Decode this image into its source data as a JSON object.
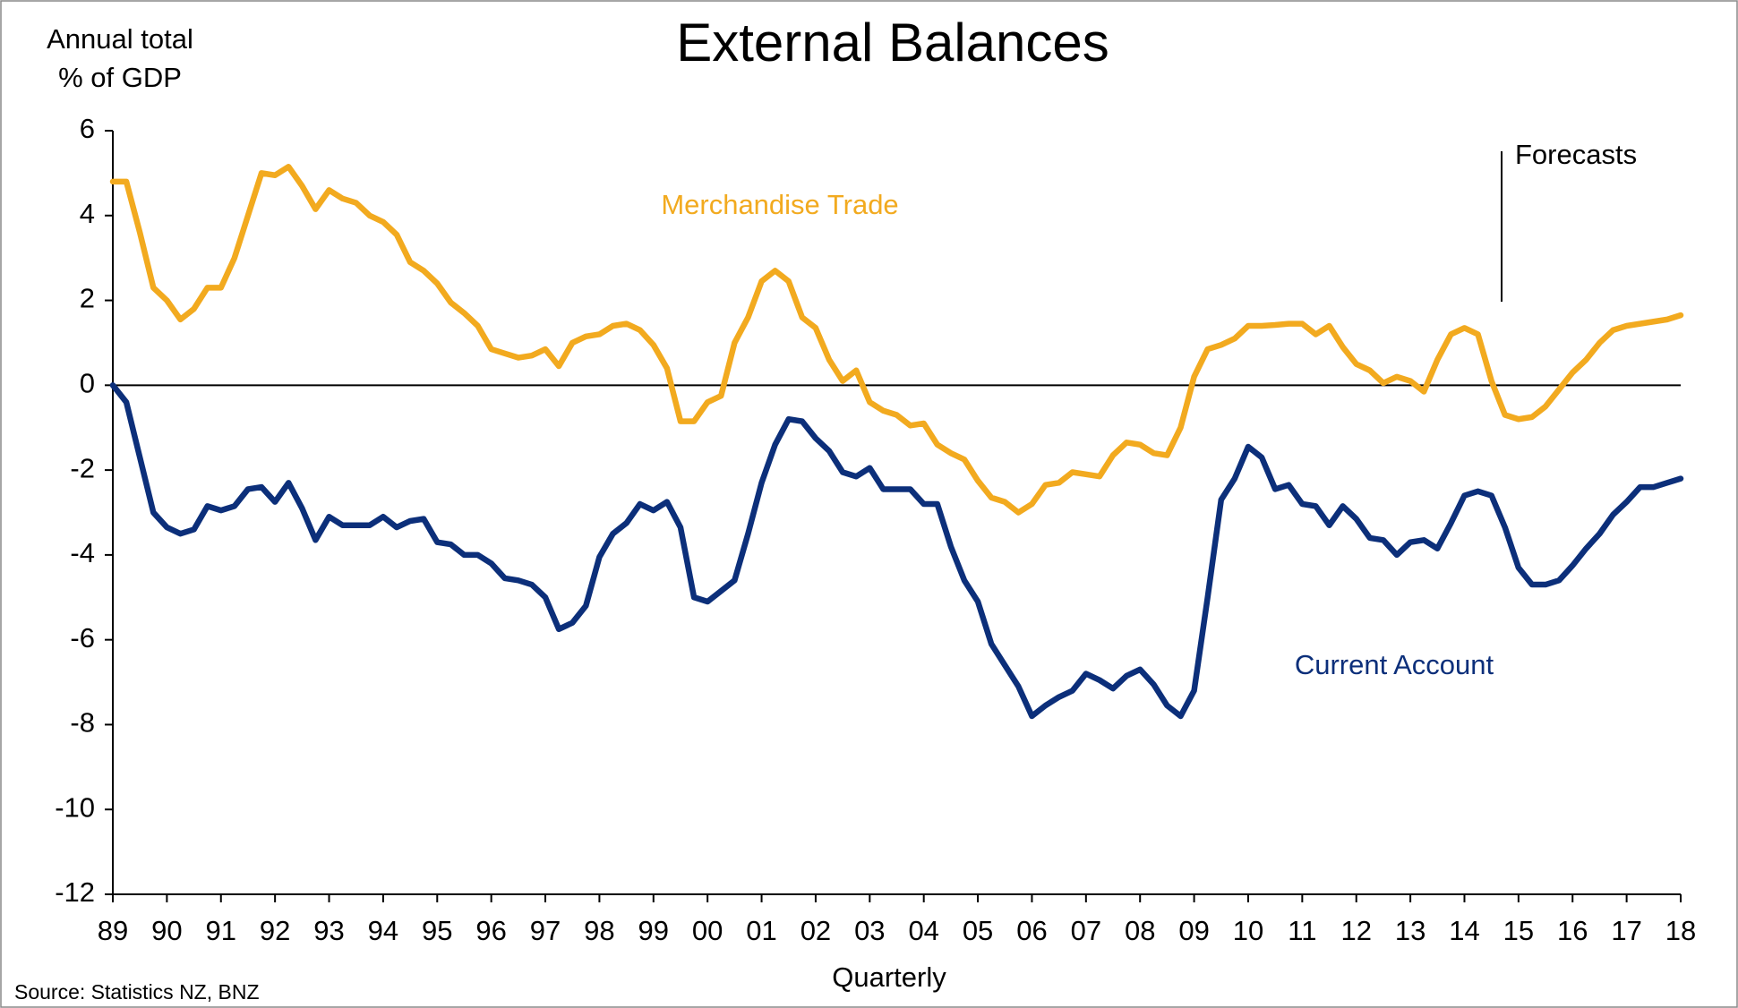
{
  "chart_data": {
    "type": "line",
    "title": "External Balances",
    "ylabel": [
      "Annual total",
      "% of GDP"
    ],
    "xlabel": "Quarterly",
    "source": "Source: Statistics NZ, BNZ",
    "annotations": [
      {
        "text": "Forecasts"
      }
    ],
    "x": [
      0,
      1,
      2,
      3,
      4,
      5,
      6,
      7,
      8,
      9,
      10,
      11,
      12,
      13,
      14,
      15,
      16,
      17,
      18,
      19,
      20,
      21,
      22,
      23,
      24,
      25,
      26,
      27,
      28,
      29,
      30,
      31,
      32,
      33,
      34,
      35,
      36,
      37,
      38,
      39,
      40,
      41,
      42,
      43,
      44,
      45,
      46,
      47,
      48,
      49,
      50,
      51,
      52,
      53,
      54,
      55,
      56,
      57,
      58,
      59,
      60,
      61,
      62,
      63,
      64,
      65,
      66,
      67,
      68,
      69,
      70,
      71,
      72,
      73,
      74,
      75,
      76,
      77,
      78,
      79,
      80,
      81,
      82,
      83,
      84,
      85,
      86,
      87,
      88,
      89,
      90,
      91,
      92,
      93,
      94,
      95,
      96,
      97,
      98,
      99,
      100,
      101,
      102,
      103,
      104,
      105,
      106,
      107,
      108,
      109,
      110,
      111,
      112,
      113,
      114,
      115,
      116
    ],
    "xlim": [
      0,
      116
    ],
    "xticks": [
      {
        "value": 0,
        "label": "89"
      },
      {
        "value": 4,
        "label": "90"
      },
      {
        "value": 8,
        "label": "91"
      },
      {
        "value": 12,
        "label": "92"
      },
      {
        "value": 16,
        "label": "93"
      },
      {
        "value": 20,
        "label": "94"
      },
      {
        "value": 24,
        "label": "95"
      },
      {
        "value": 28,
        "label": "96"
      },
      {
        "value": 32,
        "label": "97"
      },
      {
        "value": 36,
        "label": "98"
      },
      {
        "value": 40,
        "label": "99"
      },
      {
        "value": 44,
        "label": "00"
      },
      {
        "value": 48,
        "label": "01"
      },
      {
        "value": 52,
        "label": "02"
      },
      {
        "value": 56,
        "label": "03"
      },
      {
        "value": 60,
        "label": "04"
      },
      {
        "value": 64,
        "label": "05"
      },
      {
        "value": 68,
        "label": "06"
      },
      {
        "value": 72,
        "label": "07"
      },
      {
        "value": 76,
        "label": "08"
      },
      {
        "value": 80,
        "label": "09"
      },
      {
        "value": 84,
        "label": "10"
      },
      {
        "value": 88,
        "label": "11"
      },
      {
        "value": 92,
        "label": "12"
      },
      {
        "value": 96,
        "label": "13"
      },
      {
        "value": 100,
        "label": "14"
      },
      {
        "value": 104,
        "label": "15"
      },
      {
        "value": 108,
        "label": "16"
      },
      {
        "value": 112,
        "label": "17"
      },
      {
        "value": 116,
        "label": "18"
      }
    ],
    "ylim": [
      -12,
      6
    ],
    "yticks": [
      6,
      4,
      2,
      0,
      -2,
      -4,
      -6,
      -8,
      -10,
      -12
    ],
    "series": [
      {
        "name": "Merchandise Trade",
        "color": "#F2AA1F",
        "values": [
          4.8,
          4.8,
          3.6,
          2.3,
          2.0,
          1.55,
          1.8,
          2.3,
          2.3,
          3.0,
          4.0,
          5.0,
          4.95,
          5.15,
          4.7,
          4.15,
          4.6,
          4.4,
          4.3,
          4.0,
          3.85,
          3.55,
          2.9,
          2.7,
          2.4,
          1.95,
          1.7,
          1.4,
          0.85,
          0.75,
          0.65,
          0.7,
          0.85,
          0.45,
          1.0,
          1.15,
          1.2,
          1.4,
          1.45,
          1.3,
          0.95,
          0.4,
          -0.85,
          -0.85,
          -0.4,
          -0.25,
          1.0,
          1.6,
          2.45,
          2.7,
          2.45,
          1.6,
          1.35,
          0.6,
          0.1,
          0.35,
          -0.4,
          -0.6,
          -0.7,
          -0.95,
          -0.9,
          -1.4,
          -1.6,
          -1.75,
          -2.25,
          -2.65,
          -2.75,
          -3.0,
          -2.8,
          -2.35,
          -2.3,
          -2.05,
          -2.1,
          -2.15,
          -1.65,
          -1.35,
          -1.4,
          -1.6,
          -1.65,
          -1.0,
          0.2,
          0.85,
          0.95,
          1.1,
          1.4,
          1.4,
          1.42,
          1.45,
          1.45,
          1.2,
          1.4,
          0.9,
          0.5,
          0.35,
          0.05,
          0.2,
          0.1,
          -0.15,
          0.6,
          1.2,
          1.35,
          1.2,
          0.1,
          -0.7,
          -0.8,
          -0.75,
          -0.5,
          -0.1,
          0.3,
          0.6,
          1.0,
          1.3,
          1.4,
          1.45,
          1.5,
          1.55,
          1.65
        ]
      },
      {
        "name": "Current Account",
        "color": "#0C2F7A",
        "values": [
          0,
          -0.4,
          -1.7,
          -3.0,
          -3.35,
          -3.5,
          -3.4,
          -2.85,
          -2.95,
          -2.85,
          -2.45,
          -2.4,
          -2.75,
          -2.3,
          -2.9,
          -3.65,
          -3.1,
          -3.3,
          -3.3,
          -3.3,
          -3.1,
          -3.35,
          -3.2,
          -3.15,
          -3.7,
          -3.75,
          -4.0,
          -4.0,
          -4.2,
          -4.55,
          -4.6,
          -4.7,
          -5.0,
          -5.75,
          -5.6,
          -5.2,
          -4.05,
          -3.5,
          -3.25,
          -2.8,
          -2.95,
          -2.75,
          -3.35,
          -5.0,
          -5.1,
          -4.85,
          -4.6,
          -3.5,
          -2.3,
          -1.4,
          -0.8,
          -0.85,
          -1.25,
          -1.55,
          -2.05,
          -2.15,
          -1.95,
          -2.45,
          -2.45,
          -2.45,
          -2.8,
          -2.8,
          -3.8,
          -4.6,
          -5.1,
          -6.1,
          -6.6,
          -7.1,
          -7.8,
          -7.55,
          -7.35,
          -7.2,
          -6.8,
          -6.95,
          -7.15,
          -6.85,
          -6.7,
          -7.05,
          -7.55,
          -7.8,
          -7.2,
          -5.0,
          -2.7,
          -2.2,
          -1.45,
          -1.7,
          -2.45,
          -2.35,
          -2.8,
          -2.85,
          -3.3,
          -2.85,
          -3.15,
          -3.6,
          -3.65,
          -4.0,
          -3.7,
          -3.65,
          -3.85,
          -3.25,
          -2.6,
          -2.5,
          -2.6,
          -3.35,
          -4.3,
          -4.7,
          -4.7,
          -4.6,
          -4.25,
          -3.85,
          -3.5,
          -3.05,
          -2.75,
          -2.4,
          -2.4,
          -2.3,
          -2.2
        ]
      }
    ]
  }
}
